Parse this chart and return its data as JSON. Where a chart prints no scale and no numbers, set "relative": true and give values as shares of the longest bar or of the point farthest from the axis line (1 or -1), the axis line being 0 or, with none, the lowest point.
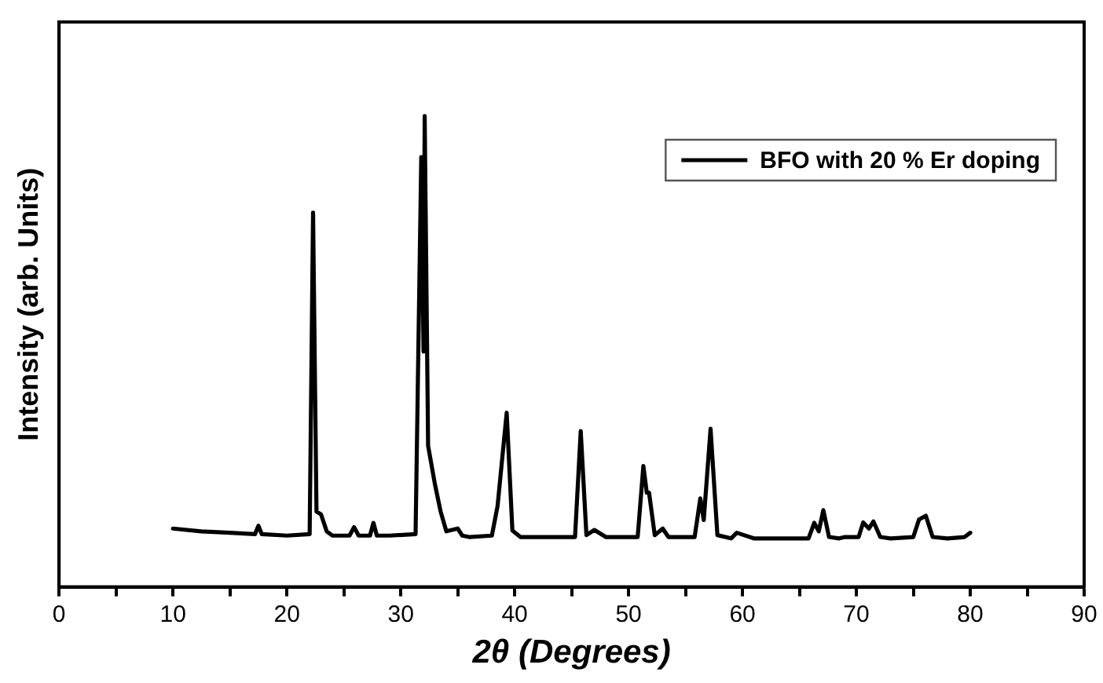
{
  "chart_data": {
    "type": "line",
    "relative": true,
    "xlabel": "2θ (Degrees)",
    "ylabel": "Intensity (arb. Units)",
    "legend": "top right",
    "marker": "none",
    "line_style": "solid",
    "grid": false,
    "xlim": [
      0,
      90
    ],
    "xticks": [
      0,
      {
        "value": 5,
        "label": null
      },
      10,
      {
        "value": 15,
        "label": null
      },
      20,
      {
        "value": 25,
        "label": null
      },
      30,
      {
        "value": 35,
        "label": null
      },
      40,
      {
        "value": 45,
        "label": null
      },
      50,
      {
        "value": 55,
        "label": null
      },
      60,
      {
        "value": 65,
        "label": null
      },
      70,
      {
        "value": 75,
        "label": null
      },
      80,
      {
        "value": 85,
        "label": null
      },
      90
    ],
    "series": [
      {
        "name": "BFO with 20 % Er doping",
        "color": "#000000",
        "x": [
          10,
          12.5,
          15,
          17.2,
          17.5,
          17.8,
          20,
          22,
          22.3,
          22.6,
          23,
          23.5,
          24,
          25.5,
          25.9,
          26.3,
          27.3,
          27.6,
          27.9,
          29,
          31.3,
          31.8,
          32.0,
          32.1,
          32.4,
          33.0,
          33.5,
          34,
          35,
          35.4,
          36,
          38,
          38.5,
          39.3,
          39.8,
          40.5,
          42,
          45.3,
          45.8,
          46.3,
          47,
          48,
          50.8,
          51.3,
          51.6,
          51.8,
          52.3,
          53,
          53.5,
          55.8,
          56.3,
          56.6,
          57.2,
          57.8,
          59,
          59.5,
          61,
          65.8,
          66.3,
          66.7,
          67.1,
          67.6,
          68.5,
          69,
          70.2,
          70.6,
          71.1,
          71.5,
          72.1,
          73,
          75,
          75.5,
          76.1,
          76.7,
          78,
          79.5,
          80
        ],
        "values": [
          0.124,
          0.118,
          0.115,
          0.112,
          0.13,
          0.112,
          0.109,
          0.112,
          0.795,
          0.16,
          0.154,
          0.118,
          0.109,
          0.109,
          0.127,
          0.109,
          0.109,
          0.136,
          0.109,
          0.109,
          0.112,
          0.913,
          0.5,
          1.0,
          0.3,
          0.218,
          0.16,
          0.118,
          0.124,
          0.109,
          0.106,
          0.109,
          0.172,
          0.37,
          0.12,
          0.106,
          0.106,
          0.106,
          0.331,
          0.11,
          0.121,
          0.106,
          0.106,
          0.257,
          0.2,
          0.2,
          0.11,
          0.124,
          0.106,
          0.106,
          0.188,
          0.142,
          0.336,
          0.11,
          0.103,
          0.115,
          0.103,
          0.103,
          0.136,
          0.118,
          0.163,
          0.106,
          0.103,
          0.106,
          0.106,
          0.137,
          0.124,
          0.139,
          0.106,
          0.103,
          0.106,
          0.143,
          0.151,
          0.106,
          0.103,
          0.106,
          0.115
        ]
      }
    ]
  }
}
